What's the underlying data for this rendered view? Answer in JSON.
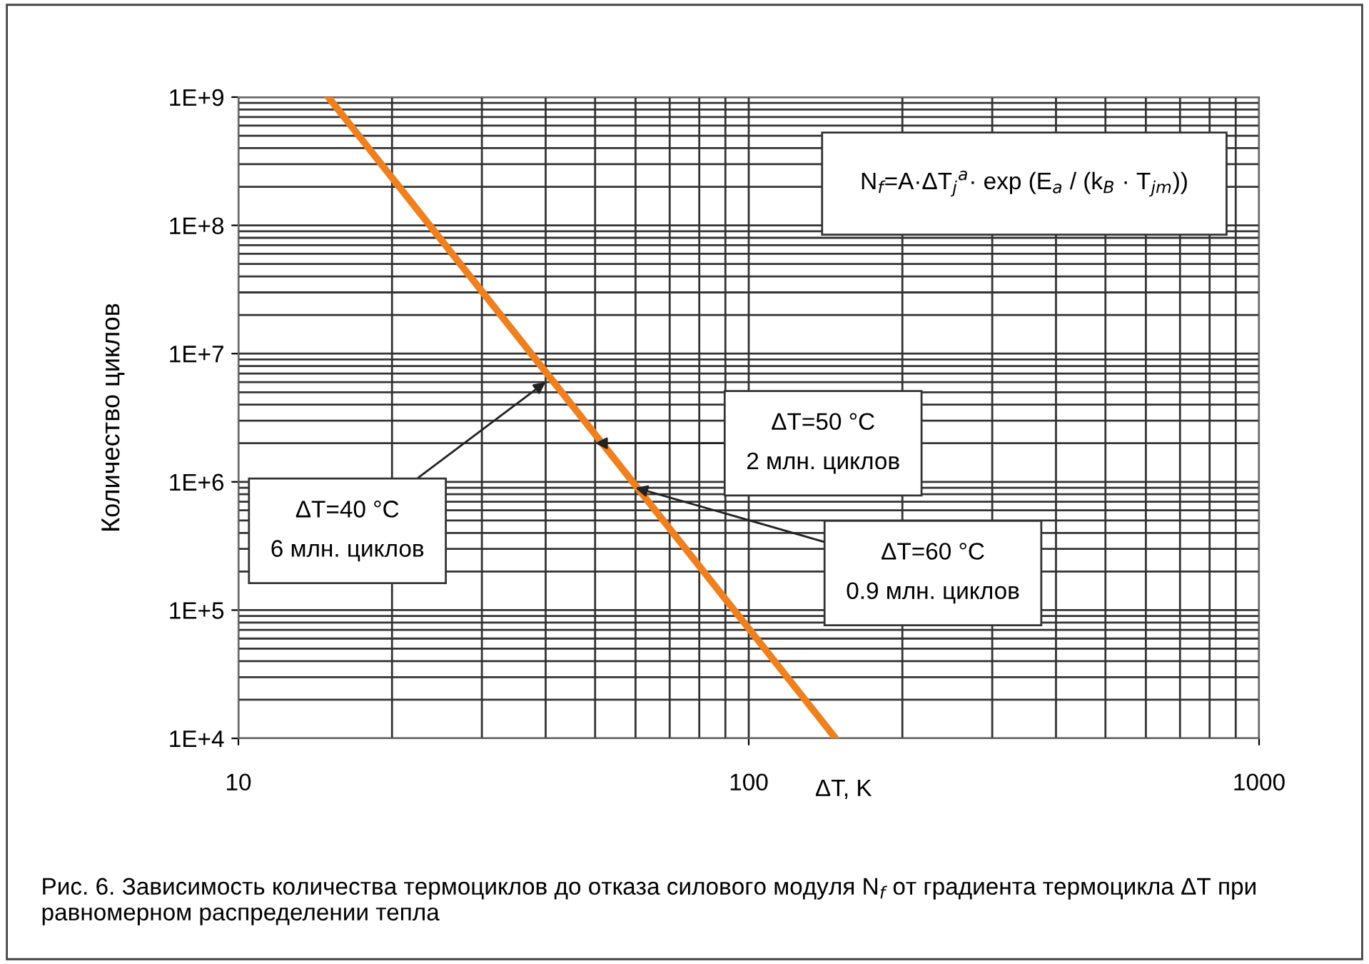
{
  "chart_data": {
    "type": "line",
    "x": [
      15,
      148
    ],
    "series": [
      {
        "color": "#f07f1e",
        "values": [
          1000000000,
          10000
        ]
      }
    ],
    "log": "xy",
    "xlim": [
      10,
      1000
    ],
    "xticks": [
      10,
      100,
      1000
    ],
    "ylim": [
      10000,
      1000000000
    ],
    "yticks": [
      {
        "value": 10000,
        "label": "1E+4"
      },
      {
        "value": 100000,
        "label": "1E+5"
      },
      {
        "value": 1000000,
        "label": "1E+6"
      },
      {
        "value": 10000000,
        "label": "1E+7"
      },
      {
        "value": 100000000,
        "label": "1E+8"
      },
      {
        "value": 1000000000,
        "label": "1E+9"
      }
    ],
    "xlabel": "ΔT, K",
    "ylabel": "Количество циклов",
    "grid": true,
    "legend": false,
    "marker": "none",
    "line_style": "solid",
    "annotations": [
      "N$_{f}$=A·ΔT$_{j}$$^{a}$· exp (E$_{a}$ / (k$_{B}$ · T$_{jm}$))",
      {
        "text": "ΔT=40 °C\n6 млн. циклов",
        "x": 40,
        "y": 6000000
      },
      {
        "text": "ΔT=50 °C\n2 млн. циклов",
        "x": 50,
        "y": 2000000
      },
      {
        "text": "ΔT=60 °C\n0.9 млн. циклов",
        "x": 60,
        "y": 900000
      },
      "Рис. 6. Зависимость количества термоциклов до отказа силового модуля N$_{f}$ от градиента термоцикла ΔT при равномерном распределении тепла"
    ]
  }
}
